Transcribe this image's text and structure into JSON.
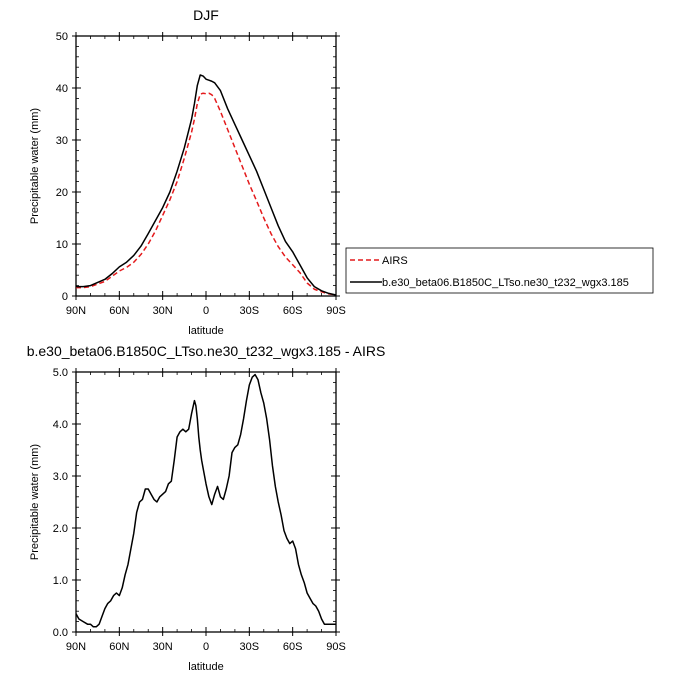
{
  "chart_data": [
    {
      "type": "line",
      "title": "DJF",
      "xlabel": "latitude",
      "ylabel": "Precipitable water (mm)",
      "xlim": [
        90,
        -90
      ],
      "ylim": [
        0,
        50
      ],
      "x_ticks": [
        90,
        60,
        30,
        0,
        -30,
        -60,
        -90
      ],
      "x_tick_labels": [
        "90N",
        "60N",
        "30N",
        "0",
        "30S",
        "60S",
        "90S"
      ],
      "y_ticks": [
        0,
        10,
        20,
        30,
        40,
        50
      ],
      "y_tick_labels": [
        "0",
        "10",
        "20",
        "30",
        "40",
        "50"
      ],
      "legend": {
        "position": "right",
        "entries": [
          "AIRS",
          "b.e30_beta06.B1850C_LTso.ne30_t232_wgx3.185"
        ]
      },
      "series": [
        {
          "name": "AIRS",
          "color": "#e41a1c",
          "dash": "dashed",
          "x": [
            90,
            85,
            80,
            75,
            70,
            65,
            60,
            55,
            50,
            45,
            40,
            35,
            30,
            25,
            20,
            15,
            10,
            8,
            6,
            4,
            2,
            0,
            -2,
            -4,
            -6,
            -10,
            -15,
            -20,
            -25,
            -30,
            -35,
            -40,
            -45,
            -50,
            -55,
            -60,
            -65,
            -70,
            -75,
            -80,
            -85,
            -90
          ],
          "y": [
            1.6,
            1.6,
            1.8,
            2.3,
            2.8,
            3.8,
            4.8,
            5.5,
            6.5,
            8.0,
            10.0,
            12.5,
            15.5,
            18.5,
            22.0,
            26.5,
            31.5,
            34.0,
            37.0,
            38.8,
            39.0,
            38.9,
            39.0,
            38.7,
            38.0,
            35.5,
            32.0,
            28.5,
            25.0,
            21.5,
            18.3,
            15.0,
            12.0,
            9.5,
            7.5,
            6.0,
            4.5,
            2.5,
            1.3,
            0.8,
            0.4,
            0.2
          ]
        },
        {
          "name": "b.e30_beta06.B1850C_LTso.ne30_t232_wgx3.185",
          "color": "#000000",
          "dash": "solid",
          "x": [
            90,
            85,
            80,
            75,
            70,
            65,
            60,
            55,
            50,
            45,
            40,
            35,
            30,
            25,
            20,
            15,
            10,
            8,
            6,
            4,
            2,
            0,
            -2,
            -4,
            -6,
            -10,
            -15,
            -20,
            -25,
            -30,
            -35,
            -40,
            -45,
            -50,
            -55,
            -60,
            -65,
            -70,
            -75,
            -80,
            -85,
            -90
          ],
          "y": [
            1.8,
            1.8,
            2.0,
            2.6,
            3.2,
            4.3,
            5.6,
            6.5,
            7.8,
            9.6,
            12.0,
            14.5,
            17.0,
            20.0,
            24.0,
            28.5,
            34.0,
            37.0,
            40.5,
            42.5,
            42.3,
            41.7,
            41.5,
            41.3,
            41.0,
            39.5,
            36.0,
            33.0,
            30.0,
            27.0,
            24.0,
            20.5,
            17.0,
            13.5,
            10.5,
            8.5,
            6.0,
            3.5,
            1.8,
            1.0,
            0.5,
            0.2
          ]
        }
      ]
    },
    {
      "type": "line",
      "title": "b.e30_beta06.B1850C_LTso.ne30_t232_wgx3.185 - AIRS",
      "xlabel": "latitude",
      "ylabel": "Precipitable water (mm)",
      "xlim": [
        90,
        -90
      ],
      "ylim": [
        0,
        5
      ],
      "x_ticks": [
        90,
        60,
        30,
        0,
        -30,
        -60,
        -90
      ],
      "x_tick_labels": [
        "90N",
        "60N",
        "30N",
        "0",
        "30S",
        "60S",
        "90S"
      ],
      "y_ticks": [
        0,
        1,
        2,
        3,
        4,
        5
      ],
      "y_tick_labels": [
        "0.0",
        "1.0",
        "2.0",
        "3.0",
        "4.0",
        "5.0"
      ],
      "series": [
        {
          "name": "b.e30_beta06.B1850C_LTso.ne30_t232_wgx3.185 - AIRS",
          "color": "#000000",
          "dash": "solid",
          "x": [
            90,
            88,
            85,
            82,
            80,
            78,
            76,
            74,
            72,
            70,
            68,
            66,
            64,
            62,
            60,
            58,
            56,
            54,
            52,
            50,
            48,
            46,
            44,
            42,
            40,
            38,
            36,
            34,
            32,
            30,
            28,
            26,
            24,
            22,
            20,
            18,
            16,
            14,
            12,
            10,
            8,
            7,
            6,
            5,
            4,
            3,
            2,
            1,
            0,
            -2,
            -4,
            -6,
            -8,
            -10,
            -12,
            -14,
            -16,
            -18,
            -20,
            -22,
            -24,
            -26,
            -28,
            -30,
            -32,
            -34,
            -36,
            -38,
            -40,
            -42,
            -44,
            -46,
            -48,
            -50,
            -52,
            -54,
            -56,
            -58,
            -60,
            -62,
            -64,
            -66,
            -68,
            -70,
            -72,
            -74,
            -76,
            -78,
            -80,
            -82,
            -84,
            -86,
            -88,
            -90
          ],
          "y": [
            0.35,
            0.25,
            0.2,
            0.15,
            0.15,
            0.1,
            0.1,
            0.15,
            0.3,
            0.45,
            0.55,
            0.6,
            0.7,
            0.75,
            0.7,
            0.85,
            1.1,
            1.3,
            1.6,
            1.9,
            2.3,
            2.5,
            2.55,
            2.75,
            2.75,
            2.65,
            2.55,
            2.5,
            2.6,
            2.65,
            2.7,
            2.85,
            2.9,
            3.3,
            3.75,
            3.85,
            3.9,
            3.85,
            3.9,
            4.2,
            4.45,
            4.35,
            4.1,
            3.75,
            3.5,
            3.3,
            3.15,
            3.0,
            2.85,
            2.6,
            2.45,
            2.65,
            2.8,
            2.6,
            2.55,
            2.75,
            3.0,
            3.45,
            3.55,
            3.6,
            3.8,
            4.1,
            4.45,
            4.75,
            4.9,
            4.95,
            4.85,
            4.6,
            4.4,
            4.1,
            3.7,
            3.2,
            2.8,
            2.5,
            2.25,
            1.95,
            1.8,
            1.7,
            1.75,
            1.6,
            1.3,
            1.1,
            0.95,
            0.75,
            0.65,
            0.55,
            0.5,
            0.4,
            0.25,
            0.15,
            0.15,
            0.15,
            0.15,
            0.15
          ]
        }
      ]
    }
  ]
}
